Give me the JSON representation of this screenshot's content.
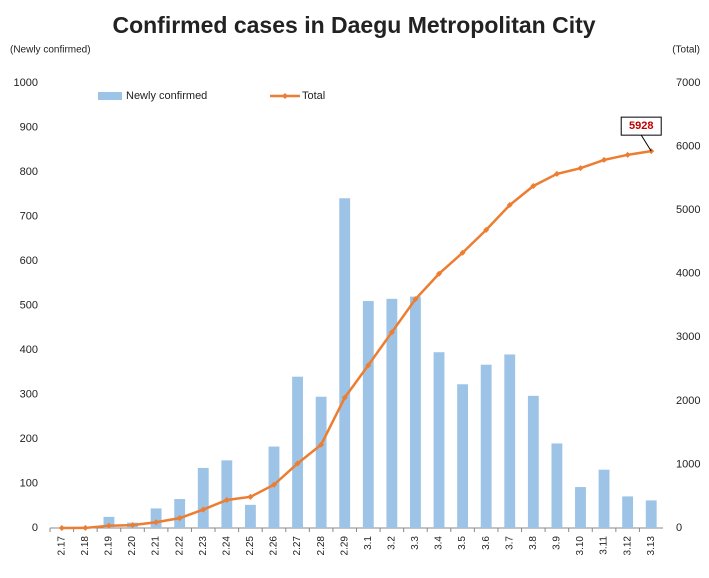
{
  "chart_data": {
    "type": "combo",
    "title": "Confirmed cases in Daegu Metropolitan City",
    "y_label": "(Newly confirmed)",
    "y2_label": "(Total)",
    "categories": [
      "2.17",
      "2.18",
      "2.19",
      "2.20",
      "2.21",
      "2.22",
      "2.23",
      "2.24",
      "2.25",
      "2.26",
      "2.27",
      "2.28",
      "2.29",
      "3.1",
      "3.2",
      "3.3",
      "3.4",
      "3.5",
      "3.6",
      "3.7",
      "3.8",
      "3.9",
      "3.10",
      "3.11",
      "3.12",
      "3.13"
    ],
    "series": [
      {
        "name": "Newly confirmed",
        "type": "bar",
        "color": "#9dc3e6",
        "values": [
          0,
          0,
          25,
          12,
          44,
          65,
          135,
          152,
          52,
          183,
          340,
          295,
          741,
          510,
          515,
          520,
          395,
          323,
          367,
          390,
          297,
          190,
          92,
          131,
          71,
          62
        ]
      },
      {
        "name": "Total",
        "type": "line",
        "axis": "y2",
        "color": "#ed7d31",
        "values": [
          0,
          1,
          35,
          45,
          90,
          155,
          290,
          440,
          490,
          680,
          1015,
          1310,
          2050,
          2560,
          3080,
          3600,
          4000,
          4330,
          4690,
          5080,
          5380,
          5570,
          5660,
          5790,
          5870,
          5928
        ],
        "value_labels": [
          null,
          null,
          null,
          null,
          null,
          null,
          null,
          null,
          null,
          null,
          null,
          null,
          null,
          null,
          null,
          null,
          null,
          null,
          null,
          null,
          null,
          null,
          null,
          null,
          null,
          "5928"
        ]
      }
    ],
    "ylim": [
      0,
      1000
    ],
    "yticks": [
      0,
      100,
      200,
      300,
      400,
      500,
      600,
      700,
      800,
      900,
      1000
    ],
    "y2lim": [
      0,
      7000
    ],
    "y2ticks": [
      0,
      1000,
      2000,
      3000,
      4000,
      5000,
      6000,
      7000
    ],
    "grid": false
  }
}
